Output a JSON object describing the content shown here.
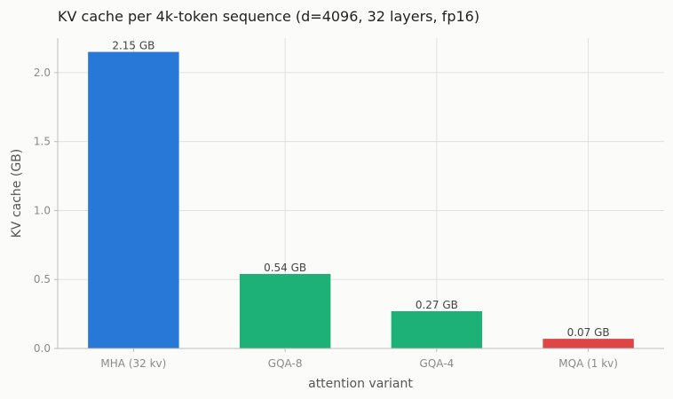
{
  "chart_data": {
    "type": "bar",
    "title": "KV cache per 4k-token sequence (d=4096, 32 layers, fp16)",
    "xlabel": "attention variant",
    "ylabel": "KV cache (GB)",
    "categories": [
      "MHA (32 kv)",
      "GQA-8",
      "GQA-4",
      "MQA (1 kv)"
    ],
    "values": [
      2.15,
      0.54,
      0.27,
      0.07
    ],
    "value_labels": [
      "2.15 GB",
      "0.54 GB",
      "0.27 GB",
      "0.07 GB"
    ],
    "colors": [
      "#2878d7",
      "#1db077",
      "#1db077",
      "#de4545"
    ],
    "ylim": [
      0,
      2.25
    ],
    "yticks": [
      0.0,
      0.5,
      1.0,
      1.5,
      2.0
    ],
    "ytick_labels": [
      "0.0",
      "0.5",
      "1.0",
      "1.5",
      "2.0"
    ],
    "grid": true,
    "legend": "none"
  }
}
